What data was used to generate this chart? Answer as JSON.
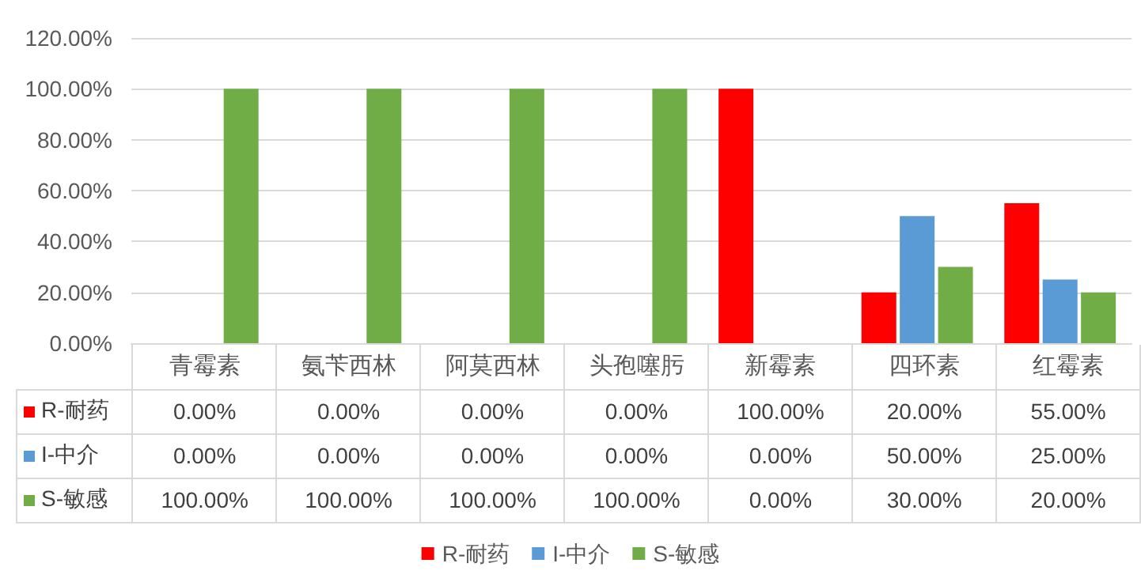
{
  "chart_data": {
    "type": "bar",
    "categories": [
      "青霉素",
      "氨苄西林",
      "阿莫西林",
      "头孢噻肟",
      "新霉素",
      "四环素",
      "红霉素"
    ],
    "series": [
      {
        "name": "R-耐药",
        "color": "#ff0000",
        "values": [
          0,
          0,
          0,
          0,
          100,
          20,
          55
        ],
        "value_labels": [
          "0.00%",
          "0.00%",
          "0.00%",
          "0.00%",
          "100.00%",
          "20.00%",
          "55.00%"
        ]
      },
      {
        "name": "I-中介",
        "color": "#5b9bd5",
        "values": [
          0,
          0,
          0,
          0,
          0,
          50,
          25
        ],
        "value_labels": [
          "0.00%",
          "0.00%",
          "0.00%",
          "0.00%",
          "0.00%",
          "50.00%",
          "25.00%"
        ]
      },
      {
        "name": "S-敏感",
        "color": "#70ad47",
        "values": [
          100,
          100,
          100,
          100,
          0,
          30,
          20
        ],
        "value_labels": [
          "100.00%",
          "100.00%",
          "100.00%",
          "100.00%",
          "0.00%",
          "30.00%",
          "20.00%"
        ]
      }
    ],
    "ylim": [
      0,
      120
    ],
    "yticks": [
      {
        "value": 0,
        "label": "0.00%"
      },
      {
        "value": 20,
        "label": "20.00%"
      },
      {
        "value": 40,
        "label": "40.00%"
      },
      {
        "value": 60,
        "label": "60.00%"
      },
      {
        "value": 80,
        "label": "80.00%"
      },
      {
        "value": 100,
        "label": "100.00%"
      },
      {
        "value": 120,
        "label": "120.00%"
      }
    ],
    "grid": "y",
    "legend": "bottom"
  }
}
